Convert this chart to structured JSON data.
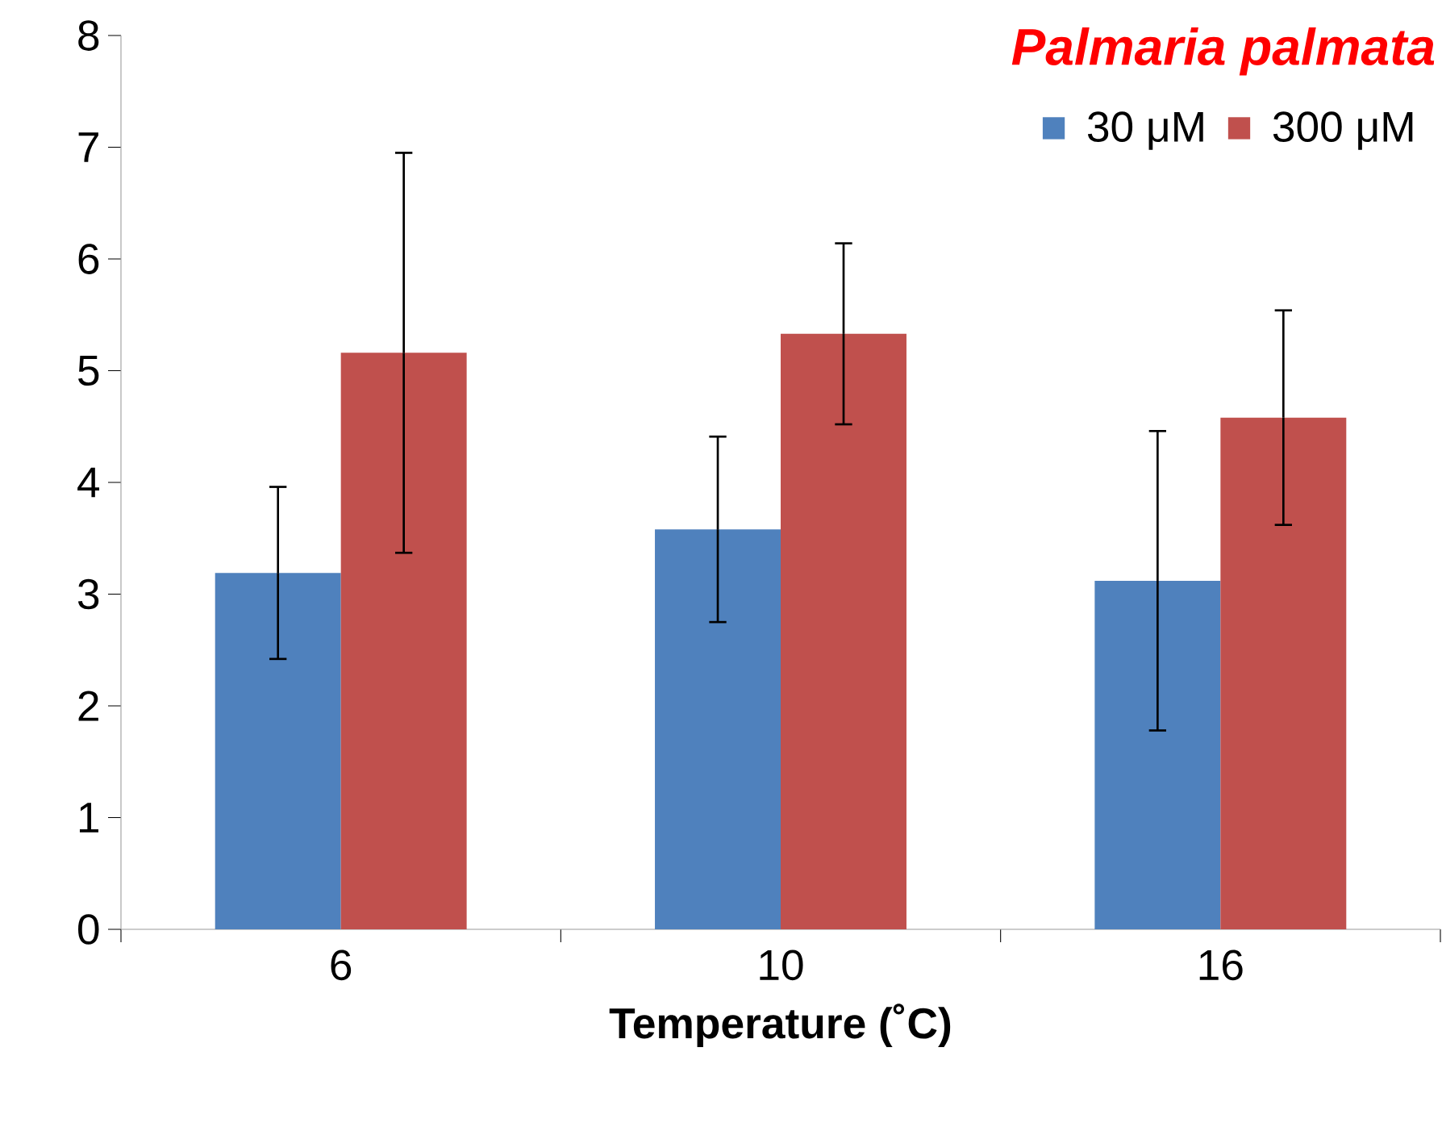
{
  "chart_data": {
    "type": "bar",
    "title": "Palmaria palmata",
    "xlabel": "Temperature (˚C)",
    "categories": [
      "6",
      "10",
      "16"
    ],
    "series": [
      {
        "name": "30 μM",
        "color": "#4f81bd",
        "values": [
          3.19,
          3.58,
          3.12
        ],
        "errors": [
          0.77,
          0.83,
          1.34
        ]
      },
      {
        "name": "300 μM",
        "color": "#c0504d",
        "values": [
          5.16,
          5.33,
          4.58
        ],
        "errors": [
          1.79,
          0.81,
          0.96
        ]
      }
    ],
    "ylim": [
      0,
      8
    ],
    "yticks": [
      0,
      1,
      2,
      3,
      4,
      5,
      6,
      7,
      8
    ],
    "legend": "top right",
    "grid": false
  }
}
